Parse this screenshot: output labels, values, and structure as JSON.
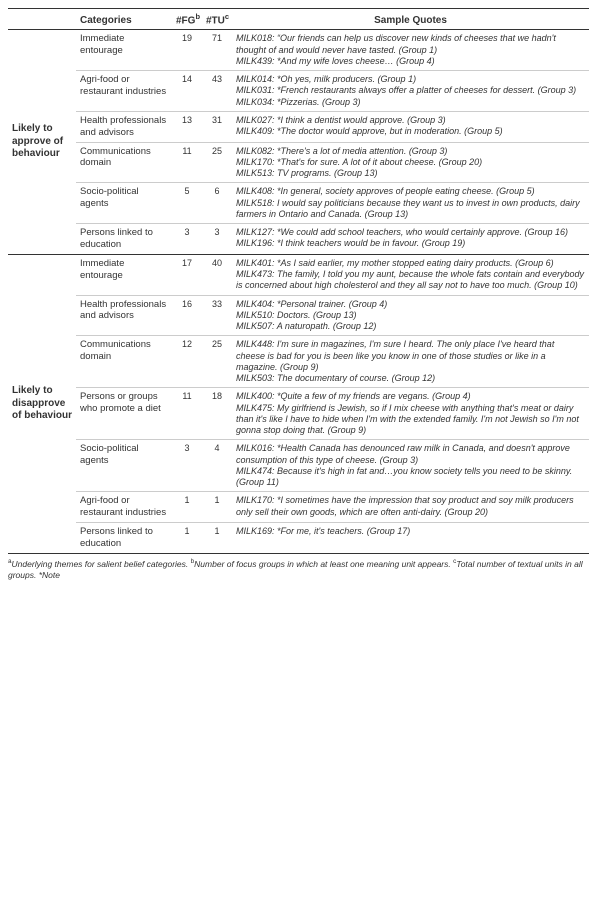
{
  "headers": {
    "blank": "",
    "categories": "Categories",
    "fg": "#FG",
    "fg_sup": "b",
    "tu": "#TU",
    "tu_sup": "c",
    "quotes": "Sample Quotes"
  },
  "themes": [
    {
      "label": "Likely to approve of behaviour",
      "rows": [
        {
          "category": "Immediate entourage",
          "fg": "19",
          "tu": "71",
          "quotes": "MILK018: “Our friends can help us discover new kinds of cheeses that we hadn't thought of and would never have tasted. (Group 1)\nMILK439: *And my wife loves cheese… (Group 4)"
        },
        {
          "category": "Agri-food or restaurant industries",
          "fg": "14",
          "tu": "43",
          "quotes": "MILK014: *Oh yes, milk producers. (Group 1)\nMILK031: *French restaurants always offer a platter of cheeses for dessert. (Group 3)\nMILK034: *Pizzerias. (Group 3)"
        },
        {
          "category": "Health professionals and advisors",
          "fg": "13",
          "tu": "31",
          "quotes": "MILK027: *I think a dentist would approve. (Group 3)\nMILK409: *The doctor would approve, but in moderation. (Group 5)"
        },
        {
          "category": "Communications domain",
          "fg": "11",
          "tu": "25",
          "quotes": "MILK082: *There's a lot of media attention. (Group 3)\nMILK170: *That's for sure. A lot of it about cheese. (Group 20)\nMILK513: TV programs. (Group 13)"
        },
        {
          "category": "Socio-political agents",
          "fg": "5",
          "tu": "6",
          "quotes": "MILK408: *In general, society approves of people eating cheese. (Group 5)\nMILK518: I would say politicians because they want us to invest in own products, dairy farmers in Ontario and Canada. (Group 13)"
        },
        {
          "category": "Persons linked to education",
          "fg": "3",
          "tu": "3",
          "quotes": "MILK127: *We could add school teachers, who would certainly approve. (Group 16)\nMILK196: *I think teachers would be in favour. (Group 19)"
        }
      ]
    },
    {
      "label": "Likely to disapprove of behaviour",
      "rows": [
        {
          "category": "Immediate entourage",
          "fg": "17",
          "tu": "40",
          "quotes": "MILK401: *As I said earlier, my mother stopped eating dairy products. (Group 6)\nMILK473: The family, I told you my aunt, because the whole fats contain and everybody is concerned about high cholesterol and they all say not to have too much. (Group 10)"
        },
        {
          "category": "Health professionals and advisors",
          "fg": "16",
          "tu": "33",
          "quotes": "MILK404: *Personal trainer. (Group 4)\nMILK510: Doctors. (Group 13)\nMILK507: A naturopath. (Group 12)"
        },
        {
          "category": "Communications domain",
          "fg": "12",
          "tu": "25",
          "quotes": "MILK448: I'm sure in magazines, I'm sure I heard. The only place I've heard that cheese is bad for you is been like you know in one of those studies or like in a magazine. (Group 9)\nMILK503: The documentary of course. (Group 12)"
        },
        {
          "category": "Persons or groups who promote a diet",
          "fg": "11",
          "tu": "18",
          "quotes": "MILK400: *Quite a few of my friends are vegans. (Group 4)\nMILK475: My girlfriend is Jewish, so if I mix cheese with anything that's meat or dairy than it's like I have to hide when I'm with the extended family. I'm not Jewish so I'm not gonna stop doing that. (Group 9)"
        },
        {
          "category": "Socio-political agents",
          "fg": "3",
          "tu": "4",
          "quotes": "MILK016: *Health Canada has denounced raw milk in Canada, and doesn't approve consumption of this type of cheese. (Group 3)\nMILK474: Because it's high in fat and…you know society tells you need to be skinny. (Group 11)"
        },
        {
          "category": "Agri-food or restaurant industries",
          "fg": "1",
          "tu": "1",
          "quotes": "MILK170: *I sometimes have the impression that soy product and soy milk producers only sell their own goods, which are often anti-dairy. (Group 20)"
        },
        {
          "category": "Persons linked to education",
          "fg": "1",
          "tu": "1",
          "quotes": "MILK169: *For me, it's teachers. (Group 17)"
        }
      ]
    }
  ],
  "footnote": {
    "a": "a",
    "a_text": "Underlying themes for salient belief categories. ",
    "b": "b",
    "b_text": "Number of focus groups in which at least one meaning unit appears. ",
    "c": "c",
    "c_text": "Total number of textual units in all groups. *Note"
  }
}
